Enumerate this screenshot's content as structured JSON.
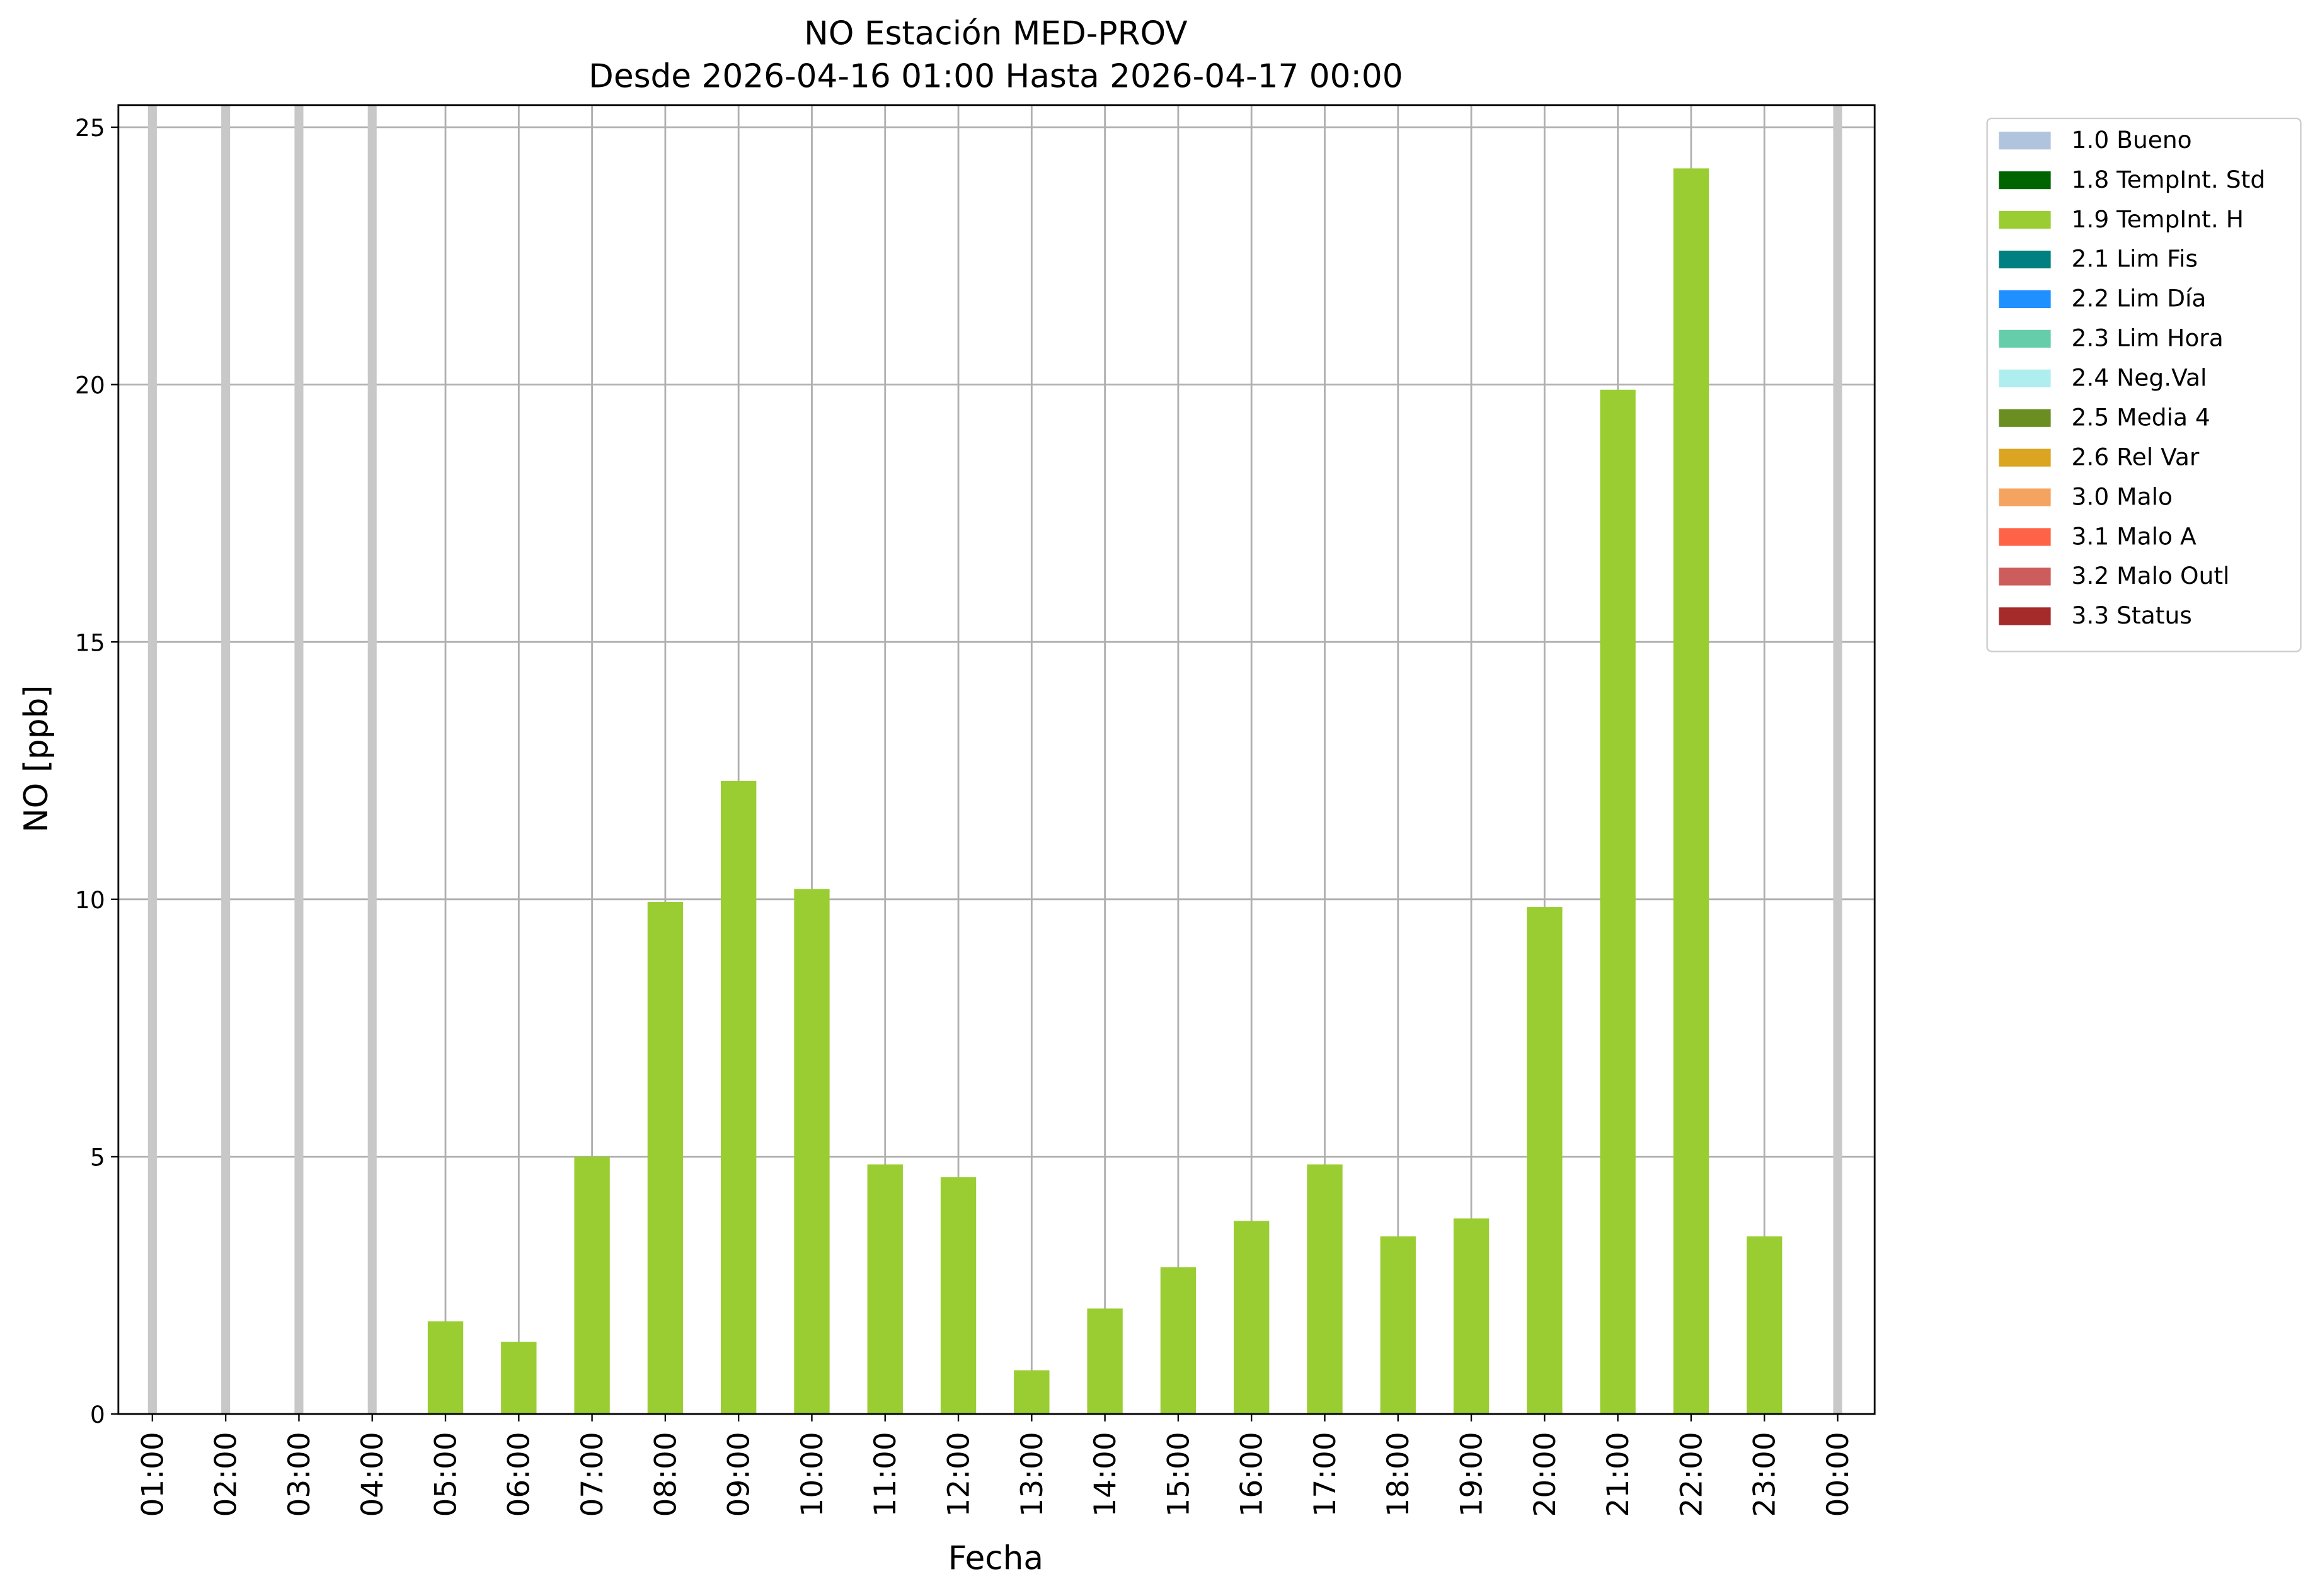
{
  "chart_data": {
    "type": "bar",
    "title": "NO Estación MED-PROV",
    "subtitle": "Desde 2026-04-16 01:00 Hasta 2026-04-17 00:00",
    "x_label": "Fecha",
    "y_label": "NO [ppb]",
    "categories": [
      "01:00",
      "02:00",
      "03:00",
      "04:00",
      "05:00",
      "06:00",
      "07:00",
      "08:00",
      "09:00",
      "10:00",
      "11:00",
      "12:00",
      "13:00",
      "14:00",
      "15:00",
      "16:00",
      "17:00",
      "18:00",
      "19:00",
      "20:00",
      "21:00",
      "22:00",
      "23:00",
      "00:00"
    ],
    "series": [
      {
        "name": "1.0 Bueno",
        "color": "#b0c4de",
        "values": [
          null,
          null,
          null,
          null,
          null,
          null,
          null,
          null,
          null,
          null,
          null,
          null,
          null,
          null,
          null,
          null,
          null,
          null,
          null,
          null,
          null,
          null,
          null,
          null
        ]
      },
      {
        "name": "1.8 TempInt. Std",
        "color": "#006400",
        "values": [
          null,
          null,
          null,
          null,
          null,
          null,
          null,
          null,
          null,
          null,
          null,
          null,
          null,
          null,
          null,
          null,
          null,
          null,
          null,
          null,
          null,
          null,
          null,
          null
        ]
      },
      {
        "name": "1.9 TempInt. H",
        "color": "#9acd32",
        "values": [
          null,
          null,
          null,
          null,
          1.8,
          1.4,
          5.0,
          9.95,
          12.3,
          10.2,
          4.85,
          4.6,
          0.85,
          2.05,
          2.85,
          3.75,
          4.85,
          3.45,
          3.8,
          9.85,
          19.9,
          24.2,
          3.45,
          null
        ]
      },
      {
        "name": "2.1 Lim Fis",
        "color": "#008080",
        "values": [
          null,
          null,
          null,
          null,
          null,
          null,
          null,
          null,
          null,
          null,
          null,
          null,
          null,
          null,
          null,
          null,
          null,
          null,
          null,
          null,
          null,
          null,
          null,
          null
        ]
      },
      {
        "name": "2.2 Lim Día",
        "color": "#1e90ff",
        "values": [
          null,
          null,
          null,
          null,
          null,
          null,
          null,
          null,
          null,
          null,
          null,
          null,
          null,
          null,
          null,
          null,
          null,
          null,
          null,
          null,
          null,
          null,
          null,
          null
        ]
      },
      {
        "name": "2.3 Lim Hora",
        "color": "#66cdaa",
        "values": [
          null,
          null,
          null,
          null,
          null,
          null,
          null,
          null,
          null,
          null,
          null,
          null,
          null,
          null,
          null,
          null,
          null,
          null,
          null,
          null,
          null,
          null,
          null,
          null
        ]
      },
      {
        "name": "2.4 Neg.Val",
        "color": "#afeeee",
        "values": [
          null,
          null,
          null,
          null,
          null,
          null,
          null,
          null,
          null,
          null,
          null,
          null,
          null,
          null,
          null,
          null,
          null,
          null,
          null,
          null,
          null,
          null,
          null,
          null
        ]
      },
      {
        "name": "2.5 Media 4",
        "color": "#6b8e23",
        "values": [
          null,
          null,
          null,
          null,
          null,
          null,
          null,
          null,
          null,
          null,
          null,
          null,
          null,
          null,
          null,
          null,
          null,
          null,
          null,
          null,
          null,
          null,
          null,
          null
        ]
      },
      {
        "name": "2.6 Rel Var",
        "color": "#daa520",
        "values": [
          null,
          null,
          null,
          null,
          null,
          null,
          null,
          null,
          null,
          null,
          null,
          null,
          null,
          null,
          null,
          null,
          null,
          null,
          null,
          null,
          null,
          null,
          null,
          null
        ]
      },
      {
        "name": "3.0 Malo",
        "color": "#f4a460",
        "values": [
          null,
          null,
          null,
          null,
          null,
          null,
          null,
          null,
          null,
          null,
          null,
          null,
          null,
          null,
          null,
          null,
          null,
          null,
          null,
          null,
          null,
          null,
          null,
          null
        ]
      },
      {
        "name": "3.1 Malo A",
        "color": "#ff6347",
        "values": [
          null,
          null,
          null,
          null,
          null,
          null,
          null,
          null,
          null,
          null,
          null,
          null,
          null,
          null,
          null,
          null,
          null,
          null,
          null,
          null,
          null,
          null,
          null,
          null
        ]
      },
      {
        "name": "3.2 Malo Outl",
        "color": "#cd5c5c",
        "values": [
          null,
          null,
          null,
          null,
          null,
          null,
          null,
          null,
          null,
          null,
          null,
          null,
          null,
          null,
          null,
          null,
          null,
          null,
          null,
          null,
          null,
          null,
          null,
          null
        ]
      },
      {
        "name": "3.3 Status",
        "color": "#a52a2a",
        "values": [
          null,
          null,
          null,
          null,
          null,
          null,
          null,
          null,
          null,
          null,
          null,
          null,
          null,
          null,
          null,
          null,
          null,
          null,
          null,
          null,
          null,
          null,
          null,
          null
        ]
      }
    ],
    "ylim": [
      0,
      25.43
    ],
    "yticks": [
      0,
      5,
      10,
      15,
      20,
      25
    ],
    "grid": true,
    "legend": "outside-right"
  }
}
